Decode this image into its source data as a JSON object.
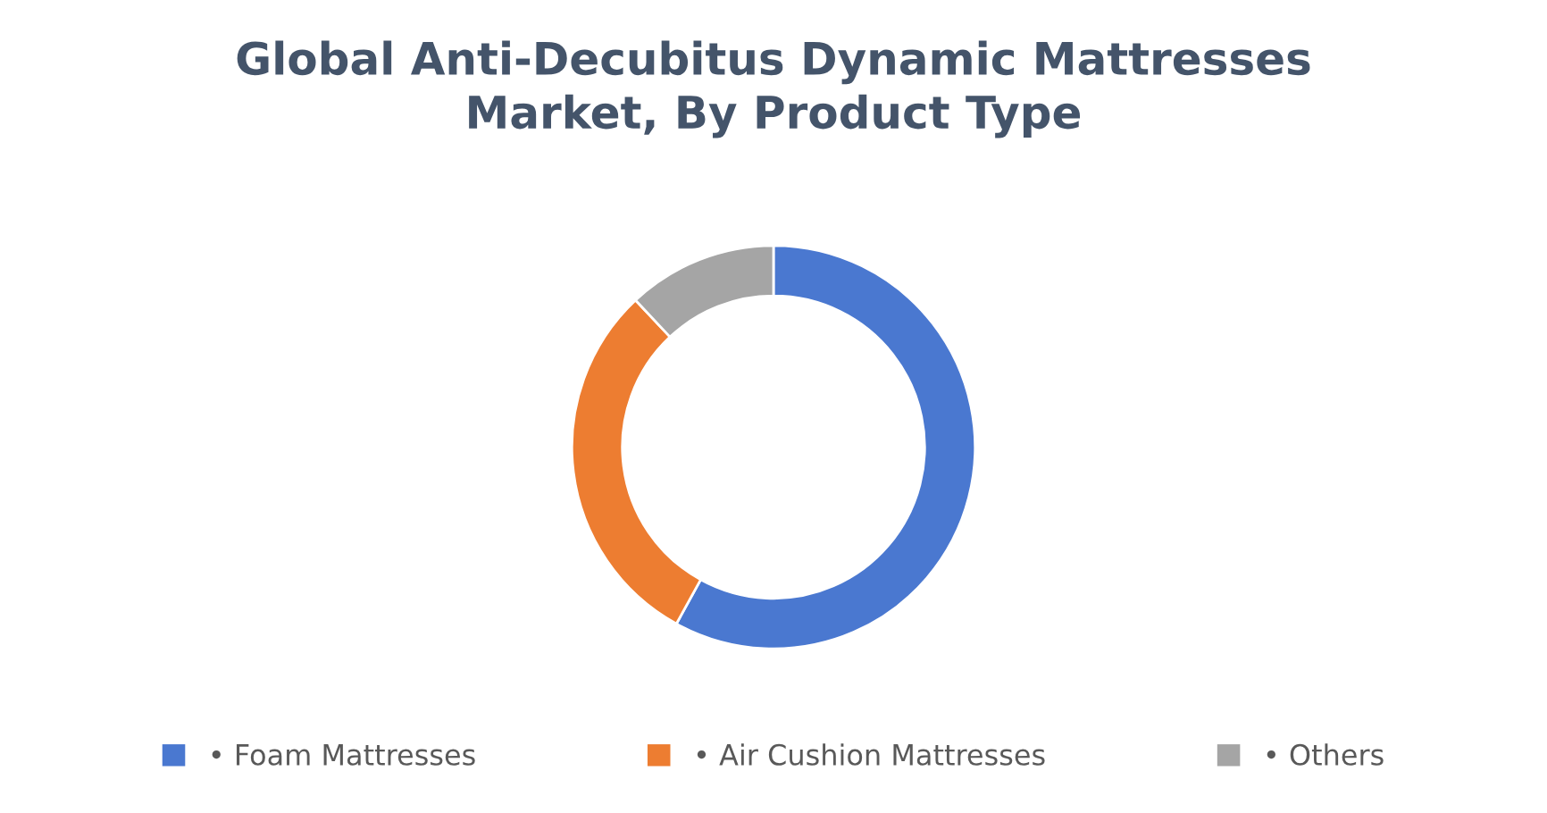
{
  "chart_data": {
    "type": "donut",
    "title": "Global Anti-Decubitus Dynamic Mattresses\nMarket, By Product Type",
    "categories": [
      "• Foam Mattresses",
      "• Air Cushion Mattresses",
      "• Others"
    ],
    "values": [
      58,
      30,
      12
    ],
    "colors": [
      "#4a78d0",
      "#ed7d31",
      "#a5a5a5"
    ],
    "legend": "bottom"
  }
}
